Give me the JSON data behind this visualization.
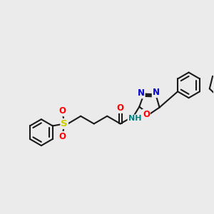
{
  "bg_color": "#ebebeb",
  "bond_color": "#1a1a1a",
  "bond_width": 1.5,
  "atom_colors": {
    "O": "#ff0000",
    "N": "#0000cc",
    "S": "#cccc00",
    "H": "#008080",
    "C": "#1a1a1a"
  },
  "font_size": 8.5
}
